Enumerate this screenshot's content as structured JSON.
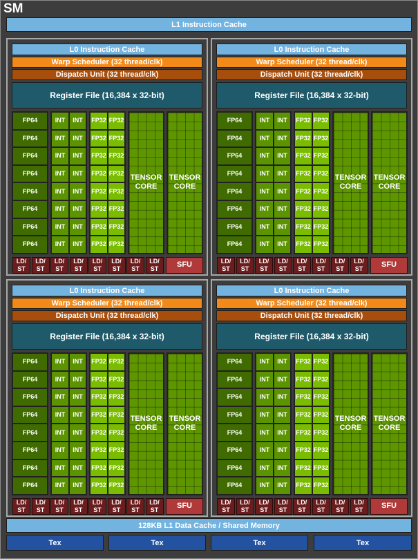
{
  "sm": {
    "title": "SM",
    "l1_instruction_cache": "L1 Instruction Cache",
    "l1_data_cache": "128KB L1 Data Cache / Shared Memory",
    "tex_units": [
      "Tex",
      "Tex",
      "Tex",
      "Tex"
    ]
  },
  "partition": {
    "l0_cache": "L0 Instruction Cache",
    "warp_scheduler": "Warp Scheduler (32 thread/clk)",
    "dispatch_unit": "Dispatch Unit (32 thread/clk)",
    "register_file": "Register File (16,384 x 32-bit)",
    "fp64_label": "FP64",
    "int_label": "INT",
    "fp32_label": "FP32",
    "tensor_label_line1": "TENSOR",
    "tensor_label_line2": "CORE",
    "ldst_line1": "LD/",
    "ldst_line2": "ST",
    "sfu_label": "SFU",
    "rows": 8,
    "ldst_units": 8
  },
  "colors": {
    "cache_blue": "#73b3e0",
    "warp_orange": "#f28a1a",
    "dispatch_brown": "#a84e0d",
    "register_teal": "#1f5a6a",
    "fp64_green": "#3f6b00",
    "int_green": "#5b9400",
    "fp32_green": "#79bc00",
    "tensor_green": "#5e9600",
    "ldst_red": "#6b1c1c",
    "sfu_red": "#b03a3a",
    "tex_blue": "#2352a0"
  }
}
